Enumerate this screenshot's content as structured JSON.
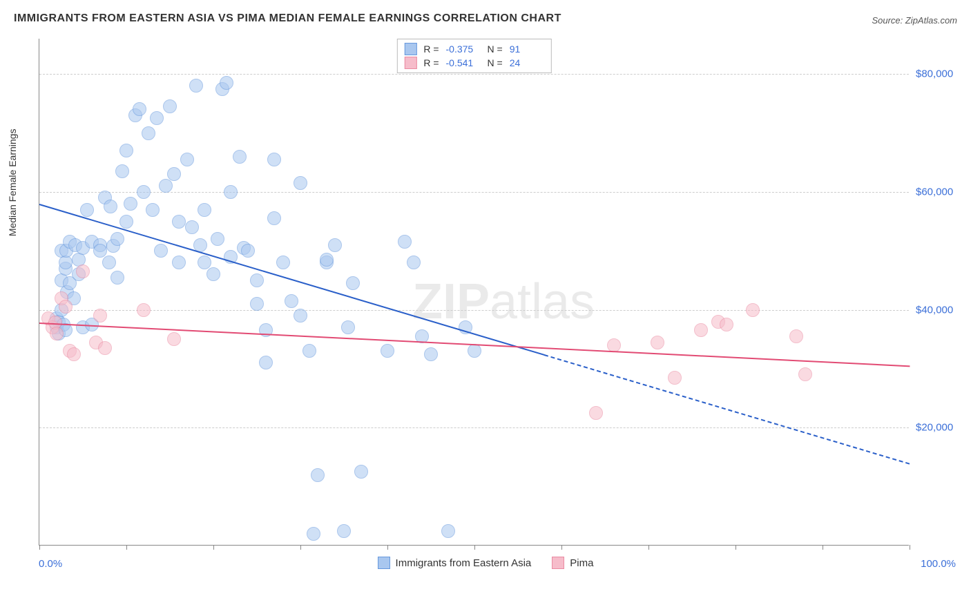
{
  "title": "IMMIGRANTS FROM EASTERN ASIA VS PIMA MEDIAN FEMALE EARNINGS CORRELATION CHART",
  "source_label": "Source: ZipAtlas.com",
  "watermark": {
    "bold": "ZIP",
    "rest": "atlas"
  },
  "chart": {
    "type": "scatter",
    "background_color": "#ffffff",
    "grid_color": "#cccccc",
    "axis_color": "#888888",
    "ylabel": "Median Female Earnings",
    "label_fontsize": 14,
    "tick_fontsize": 15,
    "tick_color": "#3b6fd8",
    "xlim": [
      0,
      100
    ],
    "ylim": [
      0,
      86000
    ],
    "xmin_label": "0.0%",
    "xmax_label": "100.0%",
    "ytick_values": [
      20000,
      40000,
      60000,
      80000
    ],
    "ytick_labels": [
      "$20,000",
      "$40,000",
      "$60,000",
      "$80,000"
    ],
    "xtick_positions": [
      0,
      10,
      20,
      30,
      40,
      50,
      60,
      70,
      80,
      90,
      100
    ],
    "marker_radius": 10,
    "marker_opacity": 0.55,
    "marker_stroke_width": 1.5,
    "series": [
      {
        "name": "Immigrants from Eastern Asia",
        "color_fill": "#a9c7ef",
        "color_stroke": "#6698dd",
        "line_color": "#2a5fc9",
        "line_width": 2.5,
        "R": "-0.375",
        "N": "91",
        "trend": {
          "x1": 0,
          "y1": 58000,
          "x2": 100,
          "y2": 14000,
          "solid_until_x": 58,
          "dash_after": true
        },
        "points": [
          [
            2,
            37000
          ],
          [
            2,
            38500
          ],
          [
            2.2,
            36000
          ],
          [
            2.2,
            38000
          ],
          [
            2.5,
            40000
          ],
          [
            2.5,
            45000
          ],
          [
            2.5,
            50000
          ],
          [
            2.8,
            37500
          ],
          [
            3,
            36500
          ],
          [
            3,
            47000
          ],
          [
            3,
            48000
          ],
          [
            3.1,
            50000
          ],
          [
            3.2,
            43000
          ],
          [
            3.5,
            51500
          ],
          [
            3.5,
            44500
          ],
          [
            4,
            42000
          ],
          [
            4.1,
            51000
          ],
          [
            4.5,
            46000
          ],
          [
            4.5,
            48500
          ],
          [
            5,
            37000
          ],
          [
            5,
            50500
          ],
          [
            5.5,
            57000
          ],
          [
            6,
            51500
          ],
          [
            6,
            37500
          ],
          [
            7,
            51000
          ],
          [
            7,
            50000
          ],
          [
            7.5,
            59000
          ],
          [
            8,
            48000
          ],
          [
            8.2,
            57500
          ],
          [
            8.5,
            50800
          ],
          [
            9,
            45500
          ],
          [
            9,
            52000
          ],
          [
            9.5,
            63500
          ],
          [
            10,
            55000
          ],
          [
            10,
            67000
          ],
          [
            10.5,
            58000
          ],
          [
            11,
            73000
          ],
          [
            11.5,
            74000
          ],
          [
            12,
            60000
          ],
          [
            12.5,
            70000
          ],
          [
            13,
            57000
          ],
          [
            13.5,
            72500
          ],
          [
            14,
            50000
          ],
          [
            14.5,
            61000
          ],
          [
            15,
            74500
          ],
          [
            15.5,
            63000
          ],
          [
            16,
            48000
          ],
          [
            16,
            55000
          ],
          [
            17,
            65500
          ],
          [
            17.5,
            54000
          ],
          [
            18,
            78000
          ],
          [
            18.5,
            51000
          ],
          [
            19,
            48000
          ],
          [
            19,
            57000
          ],
          [
            20,
            46000
          ],
          [
            20.5,
            52000
          ],
          [
            21,
            77500
          ],
          [
            21.5,
            78500
          ],
          [
            22,
            60000
          ],
          [
            22,
            49000
          ],
          [
            23,
            66000
          ],
          [
            23.5,
            50500
          ],
          [
            24,
            50000
          ],
          [
            25,
            45000
          ],
          [
            25,
            41000
          ],
          [
            26,
            31000
          ],
          [
            26,
            36500
          ],
          [
            27,
            55500
          ],
          [
            27,
            65500
          ],
          [
            28,
            48000
          ],
          [
            29,
            41500
          ],
          [
            30,
            39000
          ],
          [
            30,
            61500
          ],
          [
            31,
            33000
          ],
          [
            31.5,
            2000
          ],
          [
            32,
            12000
          ],
          [
            33,
            48000
          ],
          [
            33,
            48500
          ],
          [
            34,
            51000
          ],
          [
            35,
            2500
          ],
          [
            35.5,
            37000
          ],
          [
            36,
            44500
          ],
          [
            37,
            12500
          ],
          [
            40,
            33000
          ],
          [
            42,
            51500
          ],
          [
            43,
            48000
          ],
          [
            44,
            35500
          ],
          [
            45,
            32500
          ],
          [
            47,
            2500
          ],
          [
            49,
            37000
          ],
          [
            50,
            33000
          ]
        ]
      },
      {
        "name": "Pima",
        "color_fill": "#f6bcca",
        "color_stroke": "#ea8aa1",
        "line_color": "#e24a73",
        "line_width": 2.5,
        "R": "-0.541",
        "N": "24",
        "trend": {
          "x1": 0,
          "y1": 37800,
          "x2": 100,
          "y2": 30500,
          "solid_until_x": 100,
          "dash_after": false
        },
        "points": [
          [
            1,
            38500
          ],
          [
            1.5,
            37000
          ],
          [
            1.8,
            37800
          ],
          [
            2,
            36000
          ],
          [
            2.5,
            42000
          ],
          [
            3,
            40500
          ],
          [
            3.5,
            33000
          ],
          [
            4,
            32500
          ],
          [
            5,
            46500
          ],
          [
            6.5,
            34500
          ],
          [
            7,
            39000
          ],
          [
            7.5,
            33500
          ],
          [
            12,
            40000
          ],
          [
            15.5,
            35000
          ],
          [
            64,
            22500
          ],
          [
            66,
            34000
          ],
          [
            71,
            34500
          ],
          [
            73,
            28500
          ],
          [
            76,
            36500
          ],
          [
            78,
            38000
          ],
          [
            79,
            37500
          ],
          [
            82,
            40000
          ],
          [
            87,
            35500
          ],
          [
            88,
            29000
          ]
        ]
      }
    ],
    "legend_top": {
      "R_label": "R =",
      "N_label": "N ="
    },
    "legend_bottom_items": [
      "Immigrants from Eastern Asia",
      "Pima"
    ]
  }
}
